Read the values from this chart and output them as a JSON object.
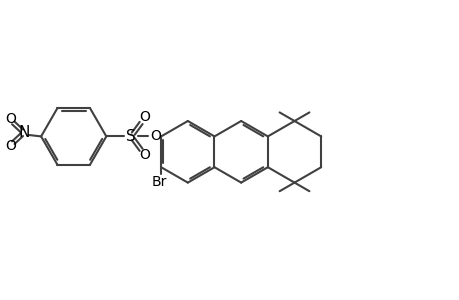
{
  "background_color": "#ffffff",
  "line_color": "#404040",
  "line_width": 1.5,
  "text_color": "#000000",
  "font_size": 10,
  "figsize": [
    4.6,
    3.0
  ],
  "dpi": 100,
  "xlim": [
    0,
    10
  ],
  "ylim": [
    0,
    6.5
  ]
}
